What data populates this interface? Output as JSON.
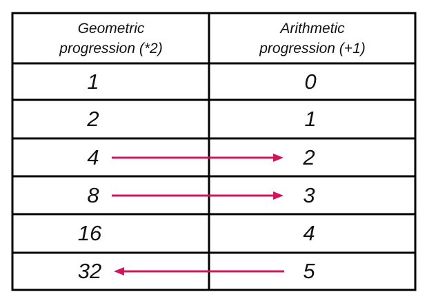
{
  "columns": [
    {
      "header": "Geometric\nprogression (*2)"
    },
    {
      "header": "Arithmetic\nprogression (+1)"
    }
  ],
  "rows": [
    {
      "geometric": "1",
      "arithmetic": "0"
    },
    {
      "geometric": "2",
      "arithmetic": "1"
    },
    {
      "geometric": "4",
      "arithmetic": "2"
    },
    {
      "geometric": "8",
      "arithmetic": "3"
    },
    {
      "geometric": "16",
      "arithmetic": "4"
    },
    {
      "geometric": "32",
      "arithmetic": "5"
    }
  ],
  "arrows": [
    {
      "row": 2,
      "direction": "geometric-to-arithmetic"
    },
    {
      "row": 3,
      "direction": "geometric-to-arithmetic"
    },
    {
      "row": 5,
      "direction": "arithmetic-to-geometric"
    }
  ],
  "colors": {
    "arrow": "#d4145a",
    "grid": "#000000",
    "text": "#111111"
  }
}
